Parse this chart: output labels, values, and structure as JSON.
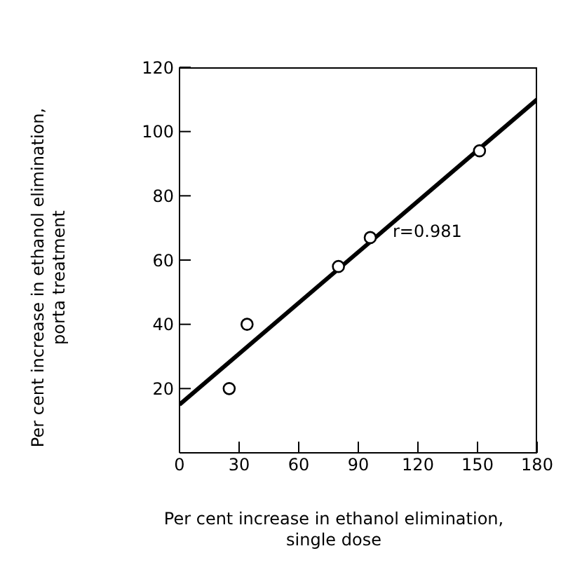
{
  "chart_data": {
    "type": "scatter",
    "xlabel": "Per cent increase in ethanol elimination,\nsingle dose",
    "ylabel": "Per cent increase in ethanol elimination,\nporta treatment",
    "xlim": [
      0,
      180
    ],
    "xticks": [
      0,
      30,
      60,
      90,
      120,
      150,
      180
    ],
    "ylim": [
      0,
      120
    ],
    "yticks": [
      {
        "value": 0,
        "label": null
      },
      20,
      40,
      60,
      80,
      100,
      120
    ],
    "grid": false,
    "annotations": [
      "r=0.981"
    ],
    "series": [
      {
        "color": "#000000",
        "marker": "circle",
        "x": [
          25,
          34,
          80,
          96,
          151
        ],
        "values": [
          20,
          40,
          58,
          67,
          94
        ]
      },
      {
        "type": "line",
        "marker": "none",
        "color": "#000000",
        "x": [
          0,
          180
        ],
        "values": [
          15,
          110
        ]
      }
    ]
  }
}
